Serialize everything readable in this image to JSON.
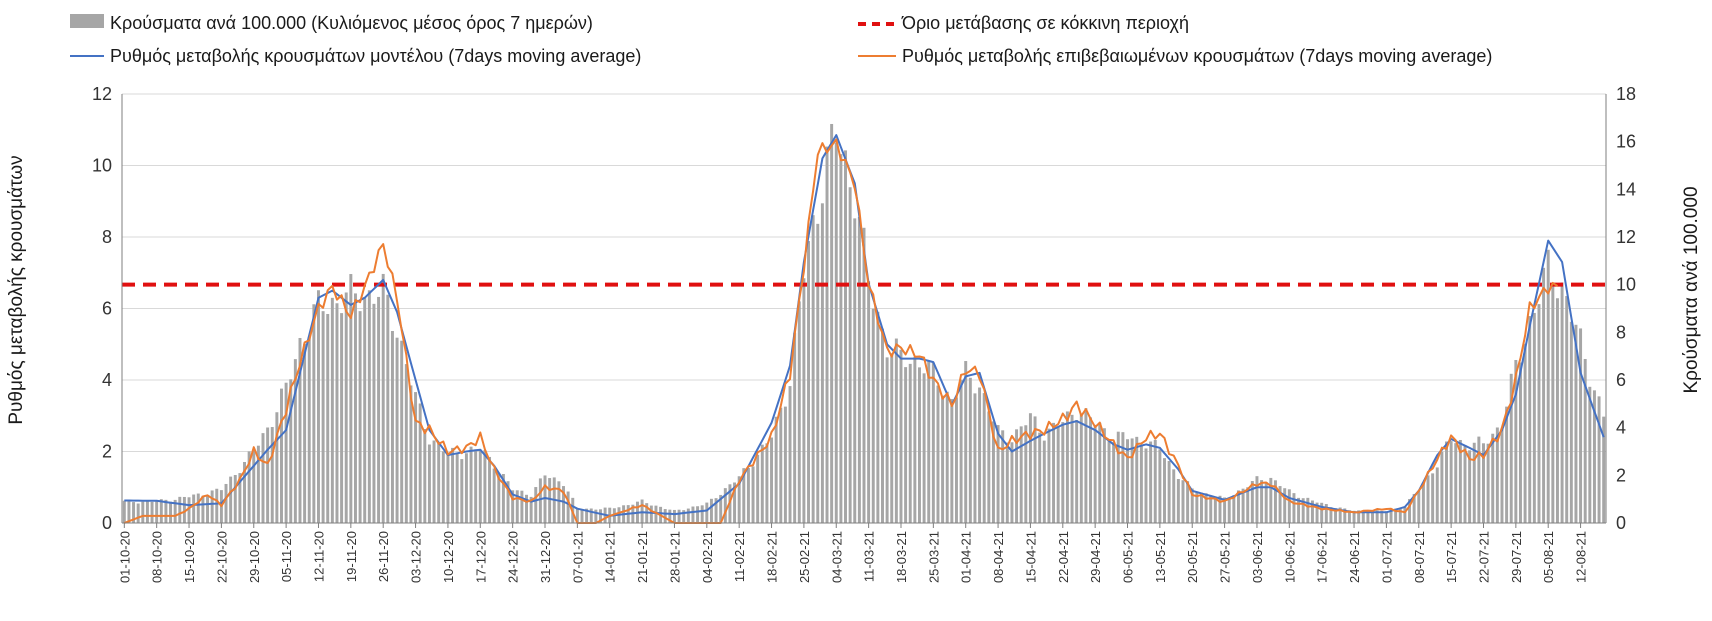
{
  "chart_data": {
    "type": "bar",
    "title": "",
    "ylabel": "Ρυθμός μεταβολής κρουσμάτων",
    "y2label": "Κρούσματα ανά 100.000",
    "ylim": [
      0,
      12
    ],
    "y2lim": [
      0,
      18
    ],
    "yticks": [
      "0",
      "2",
      "4",
      "6",
      "8",
      "10",
      "12"
    ],
    "y2ticks": [
      "0",
      "2",
      "4",
      "6",
      "8",
      "10",
      "12",
      "14",
      "16",
      "18"
    ],
    "grid": true,
    "legend_position": "top",
    "x_start": "2020-10-01",
    "x_end": "2021-08-17",
    "xticks": [
      "01-10-20",
      "08-10-20",
      "15-10-20",
      "22-10-20",
      "29-10-20",
      "05-11-20",
      "12-11-20",
      "19-11-20",
      "26-11-20",
      "03-12-20",
      "10-12-20",
      "17-12-20",
      "24-12-20",
      "31-12-20",
      "07-01-21",
      "14-01-21",
      "21-01-21",
      "28-01-21",
      "04-02-21",
      "11-02-21",
      "18-02-21",
      "25-02-21",
      "04-03-21",
      "11-03-21",
      "18-03-21",
      "25-03-21",
      "01-04-21",
      "08-04-21",
      "15-04-21",
      "22-04-21",
      "29-04-21",
      "06-05-21",
      "13-05-21",
      "20-05-21",
      "27-05-21",
      "03-06-21",
      "10-06-21",
      "17-06-21",
      "24-06-21",
      "01-07-21",
      "08-07-21",
      "15-07-21",
      "22-07-21",
      "29-07-21",
      "05-08-21",
      "12-08-21"
    ],
    "legend": {
      "bars": "Κρούσματα ανά 100.000 (Κυλιόμενος μέσος όρος 7 ημερών)",
      "threshold": "Όριο μετάβασης σε κόκκινη περιοχή",
      "model": "Ρυθμός μεταβολής κρουσμάτων μοντέλου (7days moving average)",
      "confirmed": "Ρυθμός μεταβολής επιβεβαιωμένων κρουσμάτων (7days moving average)"
    },
    "colors": {
      "bars": "#a6a6a6",
      "threshold": "#e01010",
      "model": "#4472c4",
      "confirmed": "#ed7d31",
      "grid": "#d9d9d9",
      "axis": "#7f7f7f"
    },
    "threshold": {
      "name": "Όριο μετάβασης σε κόκκινη περιοχή",
      "axis": "right",
      "value": 10
    },
    "series": [
      {
        "name": "Κρούσματα ανά 100.000 (Κυλιόμενος μέσος όρος 7 ημερών)",
        "kind": "bar",
        "axis": "right",
        "points": [
          [
            "2020-10-01",
            0.9
          ],
          [
            "2020-10-08",
            0.9
          ],
          [
            "2020-10-15",
            1.1
          ],
          [
            "2020-10-22",
            1.4
          ],
          [
            "2020-10-29",
            3.0
          ],
          [
            "2020-11-01",
            4.0
          ],
          [
            "2020-11-05",
            5.6
          ],
          [
            "2020-11-08",
            7.6
          ],
          [
            "2020-11-12",
            9.0
          ],
          [
            "2020-11-15",
            9.3
          ],
          [
            "2020-11-19",
            9.5
          ],
          [
            "2020-11-22",
            9.6
          ],
          [
            "2020-11-26",
            9.6
          ],
          [
            "2020-11-29",
            8.2
          ],
          [
            "2020-12-03",
            5.2
          ],
          [
            "2020-12-06",
            3.6
          ],
          [
            "2020-12-10",
            2.9
          ],
          [
            "2020-12-14",
            3.0
          ],
          [
            "2020-12-17",
            3.1
          ],
          [
            "2020-12-20",
            2.5
          ],
          [
            "2020-12-24",
            1.4
          ],
          [
            "2020-12-28",
            1.2
          ],
          [
            "2020-12-31",
            2.0
          ],
          [
            "2021-01-04",
            1.7
          ],
          [
            "2021-01-07",
            0.6
          ],
          [
            "2021-01-14",
            0.6
          ],
          [
            "2021-01-21",
            0.9
          ],
          [
            "2021-01-28",
            0.5
          ],
          [
            "2021-02-04",
            0.8
          ],
          [
            "2021-02-11",
            1.9
          ],
          [
            "2021-02-18",
            3.6
          ],
          [
            "2021-02-22",
            6.0
          ],
          [
            "2021-02-25",
            10.5
          ],
          [
            "2021-03-01",
            14.5
          ],
          [
            "2021-03-04",
            16.2
          ],
          [
            "2021-03-08",
            14.0
          ],
          [
            "2021-03-11",
            10.0
          ],
          [
            "2021-03-15",
            7.5
          ],
          [
            "2021-03-18",
            6.9
          ],
          [
            "2021-03-22",
            6.8
          ],
          [
            "2021-03-25",
            6.2
          ],
          [
            "2021-03-29",
            5.2
          ],
          [
            "2021-04-01",
            6.2
          ],
          [
            "2021-04-04",
            5.8
          ],
          [
            "2021-04-08",
            3.8
          ],
          [
            "2021-04-11",
            3.6
          ],
          [
            "2021-04-15",
            4.4
          ],
          [
            "2021-04-18",
            3.8
          ],
          [
            "2021-04-22",
            4.2
          ],
          [
            "2021-04-25",
            4.8
          ],
          [
            "2021-04-29",
            4.2
          ],
          [
            "2021-05-03",
            3.6
          ],
          [
            "2021-05-06",
            3.6
          ],
          [
            "2021-05-10",
            3.4
          ],
          [
            "2021-05-13",
            3.1
          ],
          [
            "2021-05-17",
            2.0
          ],
          [
            "2021-05-20",
            1.4
          ],
          [
            "2021-05-27",
            1.0
          ],
          [
            "2021-06-03",
            1.8
          ],
          [
            "2021-06-06",
            1.9
          ],
          [
            "2021-06-10",
            1.3
          ],
          [
            "2021-06-17",
            0.8
          ],
          [
            "2021-06-24",
            0.5
          ],
          [
            "2021-07-01",
            0.5
          ],
          [
            "2021-07-05",
            0.7
          ],
          [
            "2021-07-08",
            1.4
          ],
          [
            "2021-07-12",
            2.5
          ],
          [
            "2021-07-15",
            3.5
          ],
          [
            "2021-07-19",
            3.3
          ],
          [
            "2021-07-22",
            3.3
          ],
          [
            "2021-07-26",
            4.2
          ],
          [
            "2021-07-29",
            6.5
          ],
          [
            "2021-08-01",
            8.5
          ],
          [
            "2021-08-05",
            10.6
          ],
          [
            "2021-08-08",
            10.0
          ],
          [
            "2021-08-12",
            7.5
          ],
          [
            "2021-08-17",
            4.5
          ]
        ]
      },
      {
        "name": "Ρυθμός μεταβολής κρουσμάτων μοντέλου (7days moving average)",
        "kind": "line",
        "axis": "left",
        "points": [
          [
            "2020-10-01",
            0.63
          ],
          [
            "2020-10-08",
            0.62
          ],
          [
            "2020-10-15",
            0.5
          ],
          [
            "2020-10-22",
            0.55
          ],
          [
            "2020-10-29",
            1.6
          ],
          [
            "2020-11-01",
            2.05
          ],
          [
            "2020-11-05",
            2.6
          ],
          [
            "2020-11-08",
            4.2
          ],
          [
            "2020-11-12",
            6.3
          ],
          [
            "2020-11-15",
            6.5
          ],
          [
            "2020-11-19",
            6.1
          ],
          [
            "2020-11-22",
            6.3
          ],
          [
            "2020-11-26",
            6.8
          ],
          [
            "2020-11-29",
            5.9
          ],
          [
            "2020-12-03",
            4.0
          ],
          [
            "2020-12-06",
            2.6
          ],
          [
            "2020-12-10",
            1.9
          ],
          [
            "2020-12-14",
            2.0
          ],
          [
            "2020-12-17",
            2.05
          ],
          [
            "2020-12-20",
            1.6
          ],
          [
            "2020-12-24",
            0.8
          ],
          [
            "2020-12-28",
            0.6
          ],
          [
            "2020-12-31",
            0.7
          ],
          [
            "2021-01-04",
            0.6
          ],
          [
            "2021-01-07",
            0.4
          ],
          [
            "2021-01-14",
            0.2
          ],
          [
            "2021-01-21",
            0.3
          ],
          [
            "2021-01-28",
            0.25
          ],
          [
            "2021-02-04",
            0.35
          ],
          [
            "2021-02-11",
            1.1
          ],
          [
            "2021-02-18",
            2.8
          ],
          [
            "2021-02-22",
            4.4
          ],
          [
            "2021-02-25",
            7.3
          ],
          [
            "2021-03-01",
            10.2
          ],
          [
            "2021-03-04",
            10.85
          ],
          [
            "2021-03-08",
            9.5
          ],
          [
            "2021-03-11",
            6.7
          ],
          [
            "2021-03-15",
            5.0
          ],
          [
            "2021-03-18",
            4.6
          ],
          [
            "2021-03-22",
            4.6
          ],
          [
            "2021-03-25",
            4.5
          ],
          [
            "2021-03-29",
            3.3
          ],
          [
            "2021-04-01",
            4.1
          ],
          [
            "2021-04-04",
            4.2
          ],
          [
            "2021-04-08",
            2.5
          ],
          [
            "2021-04-11",
            2.0
          ],
          [
            "2021-04-15",
            2.3
          ],
          [
            "2021-04-18",
            2.5
          ],
          [
            "2021-04-22",
            2.75
          ],
          [
            "2021-04-25",
            2.85
          ],
          [
            "2021-04-29",
            2.6
          ],
          [
            "2021-05-03",
            2.2
          ],
          [
            "2021-05-06",
            2.05
          ],
          [
            "2021-05-10",
            2.2
          ],
          [
            "2021-05-13",
            2.1
          ],
          [
            "2021-05-17",
            1.5
          ],
          [
            "2021-05-20",
            0.9
          ],
          [
            "2021-05-27",
            0.65
          ],
          [
            "2021-06-03",
            1.0
          ],
          [
            "2021-06-06",
            1.0
          ],
          [
            "2021-06-10",
            0.7
          ],
          [
            "2021-06-17",
            0.45
          ],
          [
            "2021-06-24",
            0.3
          ],
          [
            "2021-07-01",
            0.3
          ],
          [
            "2021-07-05",
            0.45
          ],
          [
            "2021-07-08",
            0.9
          ],
          [
            "2021-07-12",
            1.9
          ],
          [
            "2021-07-15",
            2.35
          ],
          [
            "2021-07-19",
            2.1
          ],
          [
            "2021-07-22",
            1.9
          ],
          [
            "2021-07-26",
            2.6
          ],
          [
            "2021-07-29",
            3.6
          ],
          [
            "2021-08-01",
            5.5
          ],
          [
            "2021-08-05",
            7.9
          ],
          [
            "2021-08-08",
            7.3
          ],
          [
            "2021-08-12",
            4.2
          ],
          [
            "2021-08-17",
            2.4
          ]
        ]
      },
      {
        "name": "Ρυθμός μεταβολής επιβεβαιωμένων κρουσμάτων (7days moving average)",
        "kind": "line",
        "axis": "left",
        "points": [
          [
            "2020-10-01",
            0.0
          ],
          [
            "2020-10-05",
            0.2
          ],
          [
            "2020-10-12",
            0.2
          ],
          [
            "2020-10-15",
            0.4
          ],
          [
            "2020-10-19",
            0.8
          ],
          [
            "2020-10-22",
            0.5
          ],
          [
            "2020-10-26",
            1.2
          ],
          [
            "2020-10-29",
            2.0
          ],
          [
            "2020-11-01",
            1.6
          ],
          [
            "2020-11-05",
            3.2
          ],
          [
            "2020-11-08",
            4.5
          ],
          [
            "2020-11-12",
            6.0
          ],
          [
            "2020-11-15",
            6.6
          ],
          [
            "2020-11-19",
            5.8
          ],
          [
            "2020-11-22",
            6.6
          ],
          [
            "2020-11-26",
            7.8
          ],
          [
            "2020-11-29",
            6.3
          ],
          [
            "2020-12-03",
            2.8
          ],
          [
            "2020-12-06",
            2.6
          ],
          [
            "2020-12-10",
            2.0
          ],
          [
            "2020-12-14",
            2.1
          ],
          [
            "2020-12-17",
            2.4
          ],
          [
            "2020-12-20",
            1.5
          ],
          [
            "2020-12-24",
            0.7
          ],
          [
            "2020-12-28",
            0.6
          ],
          [
            "2020-12-31",
            1.0
          ],
          [
            "2021-01-04",
            0.9
          ],
          [
            "2021-01-07",
            0.0
          ],
          [
            "2021-01-11",
            0.0
          ],
          [
            "2021-01-14",
            0.2
          ],
          [
            "2021-01-21",
            0.5
          ],
          [
            "2021-01-28",
            0.0
          ],
          [
            "2021-02-04",
            0.0
          ],
          [
            "2021-02-07",
            0.0
          ],
          [
            "2021-02-11",
            1.2
          ],
          [
            "2021-02-18",
            2.4
          ],
          [
            "2021-02-22",
            4.2
          ],
          [
            "2021-02-25",
            7.2
          ],
          [
            "2021-02-28",
            10.4
          ],
          [
            "2021-03-04",
            10.6
          ],
          [
            "2021-03-08",
            9.5
          ],
          [
            "2021-03-11",
            6.7
          ],
          [
            "2021-03-15",
            4.8
          ],
          [
            "2021-03-18",
            4.9
          ],
          [
            "2021-03-22",
            4.7
          ],
          [
            "2021-03-25",
            4.0
          ],
          [
            "2021-03-29",
            3.3
          ],
          [
            "2021-04-01",
            4.3
          ],
          [
            "2021-04-04",
            4.2
          ],
          [
            "2021-04-08",
            2.0
          ],
          [
            "2021-04-11",
            2.3
          ],
          [
            "2021-04-15",
            2.5
          ],
          [
            "2021-04-18",
            2.6
          ],
          [
            "2021-04-22",
            2.9
          ],
          [
            "2021-04-25",
            3.3
          ],
          [
            "2021-04-29",
            2.8
          ],
          [
            "2021-05-03",
            2.2
          ],
          [
            "2021-05-06",
            1.8
          ],
          [
            "2021-05-10",
            2.4
          ],
          [
            "2021-05-13",
            2.5
          ],
          [
            "2021-05-17",
            1.6
          ],
          [
            "2021-05-20",
            0.8
          ],
          [
            "2021-05-27",
            0.6
          ],
          [
            "2021-06-03",
            1.1
          ],
          [
            "2021-06-06",
            1.1
          ],
          [
            "2021-06-10",
            0.6
          ],
          [
            "2021-06-17",
            0.4
          ],
          [
            "2021-06-24",
            0.3
          ],
          [
            "2021-07-01",
            0.4
          ],
          [
            "2021-07-05",
            0.3
          ],
          [
            "2021-07-08",
            0.9
          ],
          [
            "2021-07-12",
            1.8
          ],
          [
            "2021-07-15",
            2.4
          ],
          [
            "2021-07-19",
            1.8
          ],
          [
            "2021-07-22",
            1.9
          ],
          [
            "2021-07-26",
            2.6
          ],
          [
            "2021-07-29",
            4.0
          ],
          [
            "2021-08-01",
            6.0
          ],
          [
            "2021-08-05",
            6.6
          ],
          [
            "2021-08-07",
            6.6
          ]
        ]
      }
    ]
  }
}
